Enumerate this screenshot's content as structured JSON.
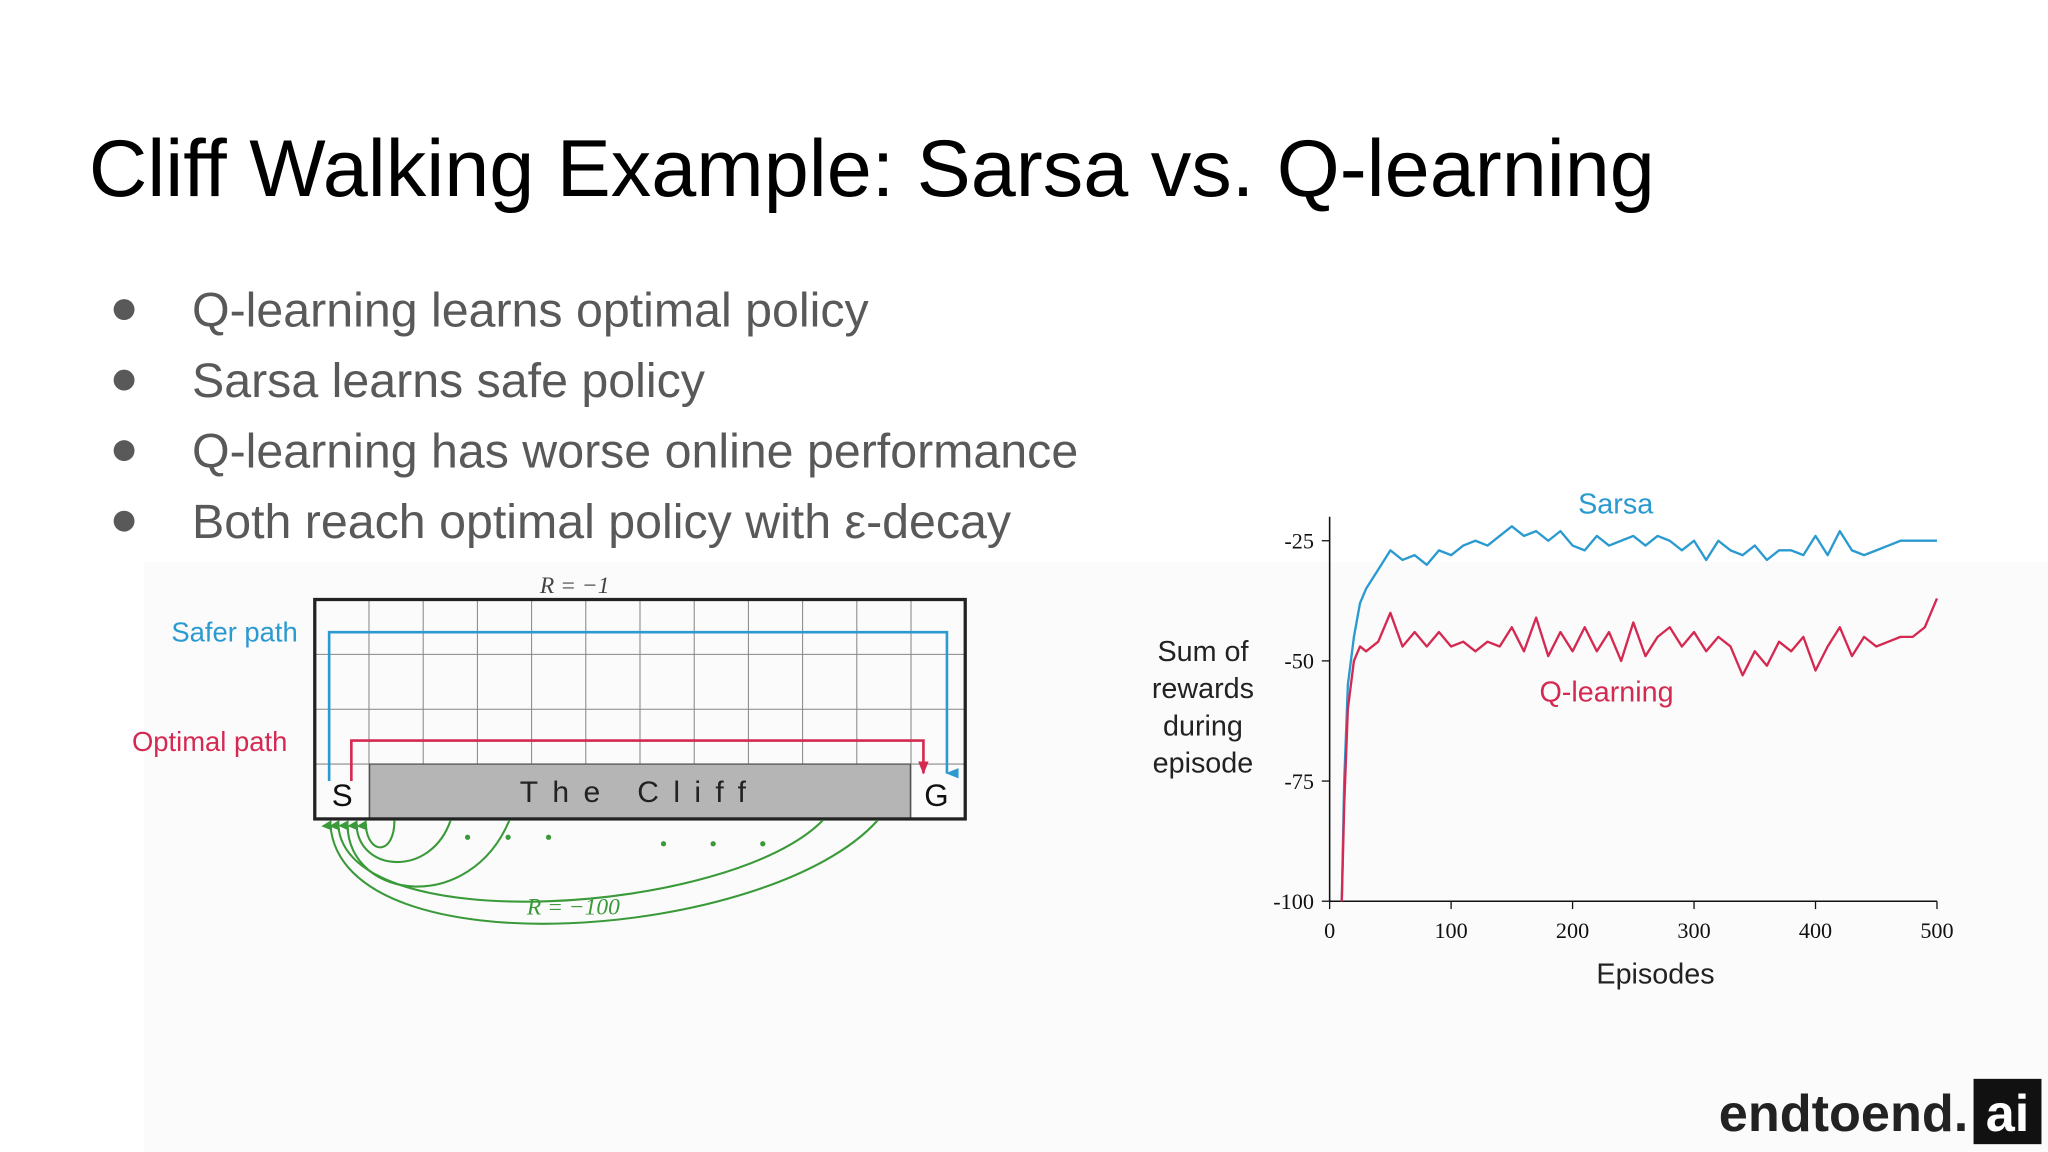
{
  "title": "Cliff Walking Example: Sarsa vs. Q-learning",
  "bullets": [
    "Q-learning learns optimal policy",
    "Sarsa learns safe policy",
    "Q-learning has worse online performance",
    "Both reach optimal policy with ε-decay"
  ],
  "diagram": {
    "top_reward": "R = −1",
    "safer_path": "Safer path",
    "optimal_path": "Optimal path",
    "start": "S",
    "goal": "G",
    "cliff": "The Cliff",
    "cliff_reward": "R = −100"
  },
  "chart_data": {
    "type": "line",
    "xlabel": "Episodes",
    "ylabel": [
      "Sum of",
      "rewards",
      "during",
      "episode"
    ],
    "x": [
      10,
      12,
      15,
      20,
      25,
      30,
      40,
      50,
      60,
      70,
      80,
      90,
      100,
      110,
      120,
      130,
      140,
      150,
      160,
      170,
      180,
      190,
      200,
      210,
      220,
      230,
      240,
      250,
      260,
      270,
      280,
      290,
      300,
      310,
      320,
      330,
      340,
      350,
      360,
      370,
      380,
      390,
      400,
      410,
      420,
      430,
      440,
      450,
      460,
      470,
      480,
      490,
      500
    ],
    "series": [
      {
        "name": "Sarsa",
        "color": "#2b9ad0",
        "values": [
          -100,
          -75,
          -55,
          -45,
          -38,
          -35,
          -31,
          -27,
          -29,
          -28,
          -30,
          -27,
          -28,
          -26,
          -25,
          -26,
          -24,
          -22,
          -24,
          -23,
          -25,
          -23,
          -26,
          -27,
          -24,
          -26,
          -25,
          -24,
          -26,
          -24,
          -25,
          -27,
          -25,
          -29,
          -25,
          -27,
          -28,
          -26,
          -29,
          -27,
          -27,
          -28,
          -24,
          -28,
          -23,
          -27,
          -28,
          -27,
          -26,
          -25,
          -25,
          -25,
          -25
        ]
      },
      {
        "name": "Q-learning",
        "color": "#d42a52",
        "values": [
          -100,
          -80,
          -60,
          -50,
          -47,
          -48,
          -46,
          -40,
          -47,
          -44,
          -47,
          -44,
          -47,
          -46,
          -48,
          -46,
          -47,
          -43,
          -48,
          -41,
          -49,
          -44,
          -48,
          -43,
          -48,
          -44,
          -50,
          -42,
          -49,
          -45,
          -43,
          -47,
          -44,
          -48,
          -45,
          -47,
          -53,
          -48,
          -51,
          -46,
          -48,
          -45,
          -52,
          -47,
          -43,
          -49,
          -45,
          -47,
          -46,
          -45,
          -45,
          -43,
          -37
        ]
      }
    ],
    "xlim": [
      0,
      500
    ],
    "ylim": [
      -100,
      -20
    ],
    "xticks": [
      0,
      100,
      200,
      300,
      400,
      500
    ],
    "yticks": [
      -100,
      -75,
      -50,
      -25
    ]
  },
  "logo": {
    "text": "endtoend.",
    "highlight": "ai"
  }
}
